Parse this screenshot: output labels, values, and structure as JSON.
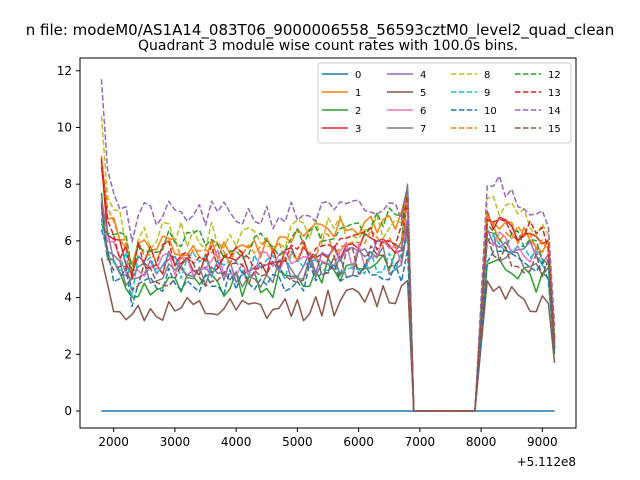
{
  "chart_data": {
    "type": "line",
    "suptitle": "n file: modeM0/AS1A14_083T06_9000006558_56593cztM0_level2_quad_clean",
    "title": "Quadrant 3 module wise count rates with 100.0s bins.",
    "xlabel": "",
    "ylabel": "",
    "x_offset_label": "+5.112e8",
    "xlim": [
      1450,
      9550
    ],
    "ylim": [
      -0.6,
      12.45
    ],
    "xticks": [
      2000,
      3000,
      4000,
      5000,
      6000,
      7000,
      8000,
      9000
    ],
    "yticks": [
      0,
      2,
      4,
      6,
      8,
      10,
      12
    ],
    "grid": false,
    "legend": {
      "placement": "top-right",
      "columns": 4
    },
    "segments": [
      {
        "x_start": 1800,
        "x_end": 6800,
        "step": 100
      },
      {
        "x_start": 8100,
        "x_end": 9200,
        "step": 100
      }
    ],
    "gap": {
      "x_start": 6800,
      "x_end": 8000,
      "down_at": 6900,
      "up_at": 7900
    },
    "series": [
      {
        "name": "0",
        "color": "#1f77b4",
        "dash": "solid",
        "first": 0,
        "level": 0,
        "tail": 0,
        "end_value": 0,
        "seg2_level": 0,
        "seg2_tail": 0,
        "seg2_end": 0
      },
      {
        "name": "1",
        "color": "#ff7f0e",
        "dash": "solid",
        "first": 8.6,
        "level": 5.8,
        "tail": 6.9,
        "end_value": 7.9,
        "seg2_level": 6.7,
        "seg2_tail": 5.6,
        "seg2_end": 2.3
      },
      {
        "name": "2",
        "color": "#2ca02c",
        "dash": "solid",
        "first": 7.7,
        "level": 4.4,
        "tail": 5.6,
        "end_value": 7.9,
        "seg2_level": 5.4,
        "seg2_tail": 4.3,
        "seg2_end": 2.0
      },
      {
        "name": "3",
        "color": "#d62728",
        "dash": "solid",
        "first": 8.8,
        "level": 5.3,
        "tail": 6.0,
        "end_value": 7.5,
        "seg2_level": 6.6,
        "seg2_tail": 5.7,
        "seg2_end": 2.4
      },
      {
        "name": "4",
        "color": "#9467bd",
        "dash": "solid",
        "first": 7.4,
        "level": 5.0,
        "tail": 5.8,
        "end_value": 6.8,
        "seg2_level": 6.2,
        "seg2_tail": 5.3,
        "seg2_end": 2.2
      },
      {
        "name": "5",
        "color": "#8c564b",
        "dash": "solid",
        "first": 5.4,
        "level": 3.5,
        "tail": 4.2,
        "end_value": 4.6,
        "seg2_level": 4.6,
        "seg2_tail": 3.6,
        "seg2_end": 1.7
      },
      {
        "name": "6",
        "color": "#e377c2",
        "dash": "solid",
        "first": 7.0,
        "level": 5.2,
        "tail": 5.7,
        "end_value": 6.4,
        "seg2_level": 6.3,
        "seg2_tail": 5.2,
        "seg2_end": 2.3
      },
      {
        "name": "7",
        "color": "#7f7f7f",
        "dash": "solid",
        "first": 7.2,
        "level": 4.8,
        "tail": 5.4,
        "end_value": 6.6,
        "seg2_level": 5.9,
        "seg2_tail": 5.0,
        "seg2_end": 2.2
      },
      {
        "name": "8",
        "color": "#bcbd22",
        "dash": "dashed",
        "first": 10.4,
        "level": 6.2,
        "tail": 6.6,
        "end_value": 7.6,
        "seg2_level": 7.3,
        "seg2_tail": 6.2,
        "seg2_end": 2.6
      },
      {
        "name": "9",
        "color": "#17becf",
        "dash": "dashed",
        "first": 6.8,
        "level": 5.1,
        "tail": 5.3,
        "end_value": 6.1,
        "seg2_level": 6.0,
        "seg2_tail": 5.1,
        "seg2_end": 2.2
      },
      {
        "name": "10",
        "color": "#1f77b4",
        "dash": "dashed",
        "first": 6.4,
        "level": 4.6,
        "tail": 5.0,
        "end_value": 5.7,
        "seg2_level": 5.5,
        "seg2_tail": 4.7,
        "seg2_end": 2.1
      },
      {
        "name": "11",
        "color": "#ff7f0e",
        "dash": "dashed",
        "first": 9.0,
        "level": 5.6,
        "tail": 6.1,
        "end_value": 7.4,
        "seg2_level": 6.5,
        "seg2_tail": 5.8,
        "seg2_end": 2.4
      },
      {
        "name": "12",
        "color": "#2ca02c",
        "dash": "dashed",
        "first": 6.6,
        "level": 5.9,
        "tail": 6.8,
        "end_value": 7.9,
        "seg2_level": 6.4,
        "seg2_tail": 5.4,
        "seg2_end": 2.4
      },
      {
        "name": "13",
        "color": "#d62728",
        "dash": "dashed",
        "first": 8.9,
        "level": 5.5,
        "tail": 6.2,
        "end_value": 7.6,
        "seg2_level": 6.8,
        "seg2_tail": 6.0,
        "seg2_end": 2.5
      },
      {
        "name": "14",
        "color": "#9467bd",
        "dash": "dashed",
        "first": 11.7,
        "level": 6.9,
        "tail": 7.1,
        "end_value": 8.0,
        "seg2_level": 8.2,
        "seg2_tail": 6.8,
        "seg2_end": 3.0
      },
      {
        "name": "15",
        "color": "#8c564b",
        "dash": "dashed",
        "first": 7.3,
        "level": 4.9,
        "tail": 5.5,
        "end_value": 6.5,
        "seg2_level": 5.8,
        "seg2_tail": 4.9,
        "seg2_end": 2.2
      }
    ]
  }
}
